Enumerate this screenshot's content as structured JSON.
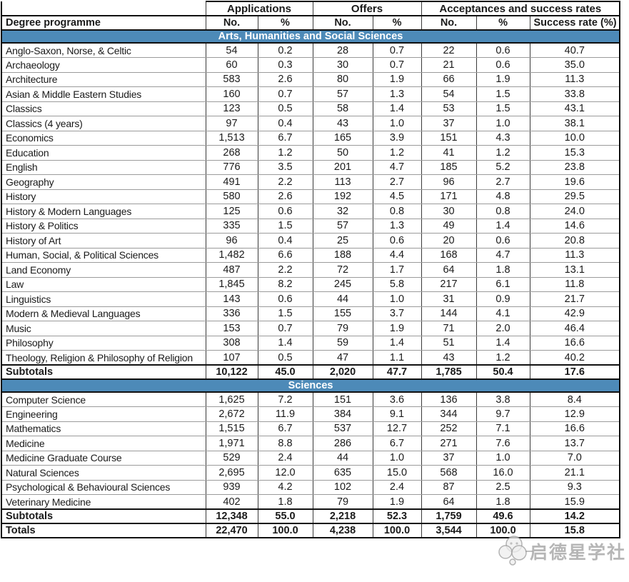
{
  "colors": {
    "section_banner_bg": "#4d8ab8",
    "section_banner_text": "#ffffff",
    "border_dark": "#111111",
    "border_light": "#9b9b9b",
    "watermark_gray": "#7a7a7a"
  },
  "watermark": {
    "text": "启德星学社",
    "logo_icon": "cloud-paw-logo"
  },
  "table": {
    "group_headers": [
      "Applications",
      "Offers",
      "Acceptances and success rates"
    ],
    "sub_headers": [
      "Degree programme",
      "No.",
      "%",
      "No.",
      "%",
      "No.",
      "%",
      "Success rate (%)"
    ],
    "sections": [
      {
        "title": "Arts, Humanities and Social Sciences",
        "rows": [
          [
            "Anglo-Saxon, Norse, & Celtic",
            "54",
            "0.2",
            "28",
            "0.7",
            "22",
            "0.6",
            "40.7"
          ],
          [
            "Archaeology",
            "60",
            "0.3",
            "30",
            "0.7",
            "21",
            "0.6",
            "35.0"
          ],
          [
            "Architecture",
            "583",
            "2.6",
            "80",
            "1.9",
            "66",
            "1.9",
            "11.3"
          ],
          [
            "Asian & Middle Eastern Studies",
            "160",
            "0.7",
            "57",
            "1.3",
            "54",
            "1.5",
            "33.8"
          ],
          [
            "Classics",
            "123",
            "0.5",
            "58",
            "1.4",
            "53",
            "1.5",
            "43.1"
          ],
          [
            "Classics (4 years)",
            "97",
            "0.4",
            "43",
            "1.0",
            "37",
            "1.0",
            "38.1"
          ],
          [
            "Economics",
            "1,513",
            "6.7",
            "165",
            "3.9",
            "151",
            "4.3",
            "10.0"
          ],
          [
            "Education",
            "268",
            "1.2",
            "50",
            "1.2",
            "41",
            "1.2",
            "15.3"
          ],
          [
            "English",
            "776",
            "3.5",
            "201",
            "4.7",
            "185",
            "5.2",
            "23.8"
          ],
          [
            "Geography",
            "491",
            "2.2",
            "113",
            "2.7",
            "96",
            "2.7",
            "19.6"
          ],
          [
            "History",
            "580",
            "2.6",
            "192",
            "4.5",
            "171",
            "4.8",
            "29.5"
          ],
          [
            "History & Modern Languages",
            "125",
            "0.6",
            "32",
            "0.8",
            "30",
            "0.8",
            "24.0"
          ],
          [
            "History & Politics",
            "335",
            "1.5",
            "57",
            "1.3",
            "49",
            "1.4",
            "14.6"
          ],
          [
            "History of Art",
            "96",
            "0.4",
            "25",
            "0.6",
            "20",
            "0.6",
            "20.8"
          ],
          [
            "Human, Social, & Political Sciences",
            "1,482",
            "6.6",
            "188",
            "4.4",
            "168",
            "4.7",
            "11.3"
          ],
          [
            "Land Economy",
            "487",
            "2.2",
            "72",
            "1.7",
            "64",
            "1.8",
            "13.1"
          ],
          [
            "Law",
            "1,845",
            "8.2",
            "245",
            "5.8",
            "217",
            "6.1",
            "11.8"
          ],
          [
            "Linguistics",
            "143",
            "0.6",
            "44",
            "1.0",
            "31",
            "0.9",
            "21.7"
          ],
          [
            "Modern & Medieval Languages",
            "336",
            "1.5",
            "155",
            "3.7",
            "144",
            "4.1",
            "42.9"
          ],
          [
            "Music",
            "153",
            "0.7",
            "79",
            "1.9",
            "71",
            "2.0",
            "46.4"
          ],
          [
            "Philosophy",
            "308",
            "1.4",
            "59",
            "1.4",
            "51",
            "1.4",
            "16.6"
          ],
          [
            "Theology, Religion & Philosophy of Religion",
            "107",
            "0.5",
            "47",
            "1.1",
            "43",
            "1.2",
            "40.2"
          ]
        ],
        "subtotals": [
          "Subtotals",
          "10,122",
          "45.0",
          "2,020",
          "47.7",
          "1,785",
          "50.4",
          "17.6"
        ]
      },
      {
        "title": "Sciences",
        "rows": [
          [
            "Computer Science",
            "1,625",
            "7.2",
            "151",
            "3.6",
            "136",
            "3.8",
            "8.4"
          ],
          [
            "Engineering",
            "2,672",
            "11.9",
            "384",
            "9.1",
            "344",
            "9.7",
            "12.9"
          ],
          [
            "Mathematics",
            "1,515",
            "6.7",
            "537",
            "12.7",
            "252",
            "7.1",
            "16.6"
          ],
          [
            "Medicine",
            "1,971",
            "8.8",
            "286",
            "6.7",
            "271",
            "7.6",
            "13.7"
          ],
          [
            "Medicine Graduate Course",
            "529",
            "2.4",
            "44",
            "1.0",
            "37",
            "1.0",
            "7.0"
          ],
          [
            "Natural Sciences",
            "2,695",
            "12.0",
            "635",
            "15.0",
            "568",
            "16.0",
            "21.1"
          ],
          [
            "Psychological & Behavioural Sciences",
            "939",
            "4.2",
            "102",
            "2.4",
            "87",
            "2.5",
            "9.3"
          ],
          [
            "Veterinary Medicine",
            "402",
            "1.8",
            "79",
            "1.9",
            "64",
            "1.8",
            "15.9"
          ]
        ],
        "subtotals": [
          "Subtotals",
          "12,348",
          "55.0",
          "2,218",
          "52.3",
          "1,759",
          "49.6",
          "14.2"
        ]
      }
    ],
    "totals": [
      "Totals",
      "22,470",
      "100.0",
      "4,238",
      "100.0",
      "3,544",
      "100.0",
      "15.8"
    ]
  }
}
